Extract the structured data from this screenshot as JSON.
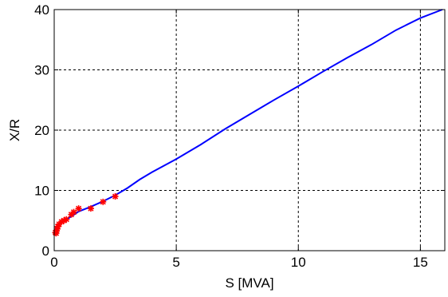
{
  "chart_data": {
    "type": "line",
    "xlabel": "S [MVA]",
    "ylabel": "X/R",
    "xlim": [
      0,
      16
    ],
    "ylim": [
      0,
      40
    ],
    "grid": true,
    "grid_style": "dashed",
    "x_ticks": [
      0,
      5,
      10,
      15
    ],
    "y_ticks": [
      0,
      10,
      20,
      30,
      40
    ],
    "x_tick_labels": [
      "0",
      "5",
      "10",
      "15"
    ],
    "y_tick_labels": [
      "0",
      "10",
      "20",
      "30",
      "40"
    ],
    "series": [
      {
        "style": "line",
        "color": "#0000ff",
        "x": [
          0.0,
          0.1,
          0.2,
          0.3,
          0.5,
          0.75,
          1.0,
          1.5,
          2.0,
          2.5,
          3.0,
          3.5,
          4.0,
          5.0,
          6.0,
          7.0,
          8.0,
          9.0,
          10.0,
          11.0,
          12.0,
          13.0,
          14.0,
          15.0,
          15.9
        ],
        "y": [
          3.2,
          4.0,
          4.4,
          4.7,
          5.2,
          5.8,
          6.5,
          7.3,
          8.2,
          9.2,
          10.4,
          11.8,
          13.0,
          15.2,
          17.6,
          20.2,
          22.6,
          25.0,
          27.3,
          29.7,
          32.0,
          34.2,
          36.6,
          38.6,
          40.0
        ]
      },
      {
        "style": "markers",
        "marker": "*",
        "color": "#ff0000",
        "x": [
          0.05,
          0.08,
          0.1,
          0.12,
          0.15,
          0.2,
          0.3,
          0.4,
          0.5,
          0.7,
          0.8,
          1.0,
          1.5,
          2.0,
          2.5
        ],
        "y": [
          3.0,
          2.9,
          3.3,
          3.6,
          4.0,
          4.4,
          4.8,
          5.0,
          5.2,
          6.0,
          6.4,
          7.0,
          7.0,
          8.1,
          9.0
        ]
      }
    ]
  }
}
